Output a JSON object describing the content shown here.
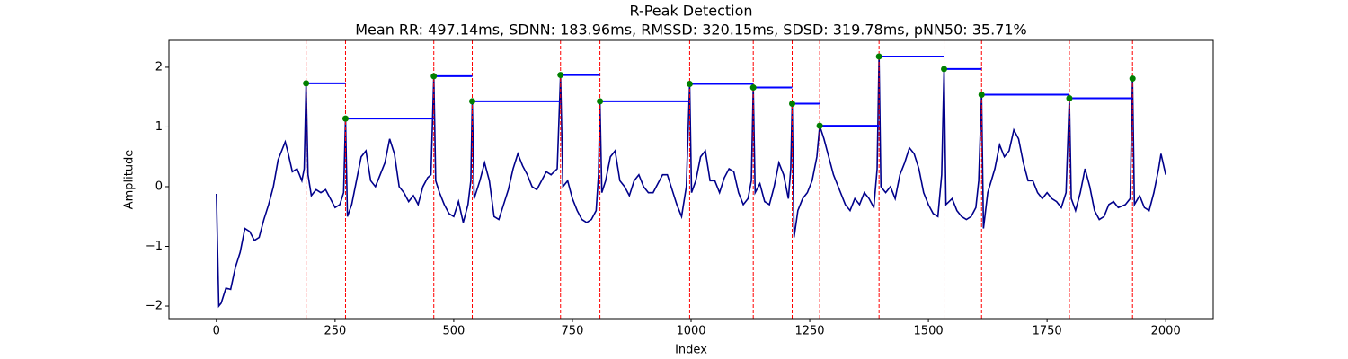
{
  "chart_data": {
    "type": "line",
    "title": "R-Peak Detection",
    "subtitle": "Mean RR: 497.14ms, SDNN: 183.96ms, RMSSD: 320.15ms, SDSD: 319.78ms, pNN50: 35.71%",
    "xlabel": "Index",
    "ylabel": "Amplitude",
    "xlim": [
      -100,
      2100
    ],
    "ylim": [
      -2.21,
      2.45
    ],
    "xticks": [
      0,
      250,
      500,
      750,
      1000,
      1250,
      1500,
      1750,
      2000
    ],
    "yticks": [
      {
        "value": -2,
        "label": "−2"
      },
      {
        "value": -1,
        "label": "−1"
      },
      0,
      1,
      2
    ],
    "series": [
      {
        "color": "#00008b",
        "x": [
          0,
          5,
          10,
          20,
          30,
          40,
          50,
          60,
          70,
          80,
          90,
          100,
          110,
          120,
          130,
          140,
          145,
          150,
          160,
          170,
          180,
          185,
          189,
          193,
          200,
          210,
          220,
          230,
          240,
          250,
          260,
          268,
          272,
          276,
          285,
          295,
          305,
          315,
          325,
          335,
          345,
          355,
          365,
          375,
          385,
          395,
          405,
          415,
          425,
          435,
          445,
          452,
          458,
          462,
          470,
          480,
          490,
          500,
          510,
          520,
          530,
          536,
          539,
          543,
          555,
          565,
          575,
          585,
          595,
          605,
          615,
          625,
          635,
          645,
          655,
          665,
          675,
          685,
          695,
          705,
          718,
          725,
          730,
          740,
          750,
          760,
          770,
          780,
          790,
          800,
          805,
          808,
          812,
          820,
          830,
          840,
          850,
          860,
          870,
          880,
          890,
          900,
          910,
          920,
          930,
          940,
          950,
          960,
          970,
          980,
          990,
          997,
          1001,
          1010,
          1020,
          1030,
          1040,
          1050,
          1060,
          1070,
          1080,
          1090,
          1100,
          1110,
          1120,
          1127,
          1131,
          1135,
          1145,
          1155,
          1165,
          1175,
          1185,
          1195,
          1205,
          1210,
          1213,
          1217,
          1225,
          1235,
          1245,
          1255,
          1265,
          1271,
          1280,
          1290,
          1300,
          1315,
          1325,
          1335,
          1345,
          1355,
          1365,
          1375,
          1385,
          1392,
          1396,
          1400,
          1410,
          1420,
          1430,
          1440,
          1450,
          1460,
          1470,
          1480,
          1490,
          1500,
          1510,
          1520,
          1528,
          1533,
          1537,
          1550,
          1560,
          1570,
          1580,
          1590,
          1600,
          1606,
          1612,
          1616,
          1625,
          1640,
          1650,
          1660,
          1670,
          1680,
          1690,
          1700,
          1710,
          1720,
          1730,
          1740,
          1750,
          1760,
          1770,
          1780,
          1790,
          1797,
          1801,
          1810,
          1820,
          1830,
          1840,
          1850,
          1860,
          1870,
          1880,
          1890,
          1900,
          1915,
          1925,
          1930,
          1934,
          1945,
          1955,
          1965,
          1975,
          1985,
          1990,
          2000
        ],
        "values": [
          -0.12,
          -2.0,
          -1.95,
          -1.7,
          -1.72,
          -1.35,
          -1.1,
          -0.7,
          -0.75,
          -0.9,
          -0.85,
          -0.55,
          -0.3,
          0.0,
          0.45,
          0.65,
          0.75,
          0.6,
          0.25,
          0.3,
          0.1,
          0.3,
          1.73,
          0.2,
          -0.15,
          -0.05,
          -0.1,
          -0.05,
          -0.2,
          -0.35,
          -0.3,
          -0.1,
          1.14,
          -0.5,
          -0.3,
          0.1,
          0.5,
          0.6,
          0.1,
          0.0,
          0.2,
          0.4,
          0.8,
          0.55,
          0.0,
          -0.1,
          -0.25,
          -0.15,
          -0.3,
          0.0,
          0.15,
          0.2,
          1.85,
          0.1,
          -0.1,
          -0.3,
          -0.45,
          -0.5,
          -0.25,
          -0.6,
          -0.3,
          0.1,
          1.43,
          -0.2,
          0.1,
          0.4,
          0.1,
          -0.5,
          -0.55,
          -0.3,
          -0.05,
          0.3,
          0.55,
          0.35,
          0.2,
          0.0,
          -0.05,
          0.1,
          0.25,
          0.2,
          0.3,
          1.87,
          0.0,
          0.1,
          -0.2,
          -0.4,
          -0.55,
          -0.6,
          -0.55,
          -0.4,
          0.2,
          1.43,
          -0.1,
          0.1,
          0.5,
          0.6,
          0.1,
          0.0,
          -0.15,
          0.1,
          0.2,
          0.0,
          -0.1,
          -0.1,
          0.05,
          0.2,
          0.2,
          -0.05,
          -0.3,
          -0.5,
          0.0,
          1.72,
          -0.1,
          0.1,
          0.5,
          0.6,
          0.1,
          0.1,
          -0.1,
          0.15,
          0.3,
          0.25,
          -0.1,
          -0.3,
          -0.2,
          0.1,
          1.66,
          -0.1,
          0.05,
          -0.25,
          -0.3,
          0.0,
          0.4,
          0.2,
          -0.2,
          0.3,
          1.39,
          -0.85,
          -0.4,
          -0.2,
          -0.1,
          0.1,
          0.5,
          1.02,
          0.8,
          0.5,
          0.2,
          -0.1,
          -0.3,
          -0.4,
          -0.2,
          -0.3,
          -0.1,
          -0.2,
          -0.35,
          0.3,
          2.18,
          0.0,
          -0.1,
          0.0,
          -0.2,
          0.2,
          0.4,
          0.65,
          0.55,
          0.3,
          -0.1,
          -0.3,
          -0.45,
          -0.5,
          0.2,
          1.97,
          -0.3,
          -0.2,
          -0.4,
          -0.5,
          -0.55,
          -0.5,
          -0.35,
          0.1,
          1.54,
          -0.7,
          -0.1,
          0.3,
          0.7,
          0.5,
          0.6,
          0.95,
          0.8,
          0.4,
          0.1,
          0.1,
          -0.1,
          -0.2,
          -0.1,
          -0.2,
          -0.25,
          -0.35,
          -0.1,
          1.48,
          -0.2,
          -0.4,
          -0.1,
          0.3,
          0.0,
          -0.4,
          -0.55,
          -0.5,
          -0.3,
          -0.25,
          -0.35,
          -0.3,
          -0.2,
          1.81,
          -0.3,
          -0.15,
          -0.35,
          -0.4,
          -0.1,
          0.3,
          0.55,
          0.2
        ]
      }
    ],
    "peaks": {
      "x": [
        189,
        272,
        458,
        539,
        725,
        808,
        997,
        1131,
        1213,
        1271,
        1396,
        1533,
        1612,
        1797,
        1930
      ],
      "values": [
        1.73,
        1.14,
        1.85,
        1.43,
        1.87,
        1.43,
        1.72,
        1.66,
        1.39,
        1.02,
        2.18,
        1.97,
        1.54,
        1.48,
        1.81
      ],
      "color": "#008000",
      "line_color": "#ff0000",
      "interval_color": "#0000ff"
    }
  }
}
